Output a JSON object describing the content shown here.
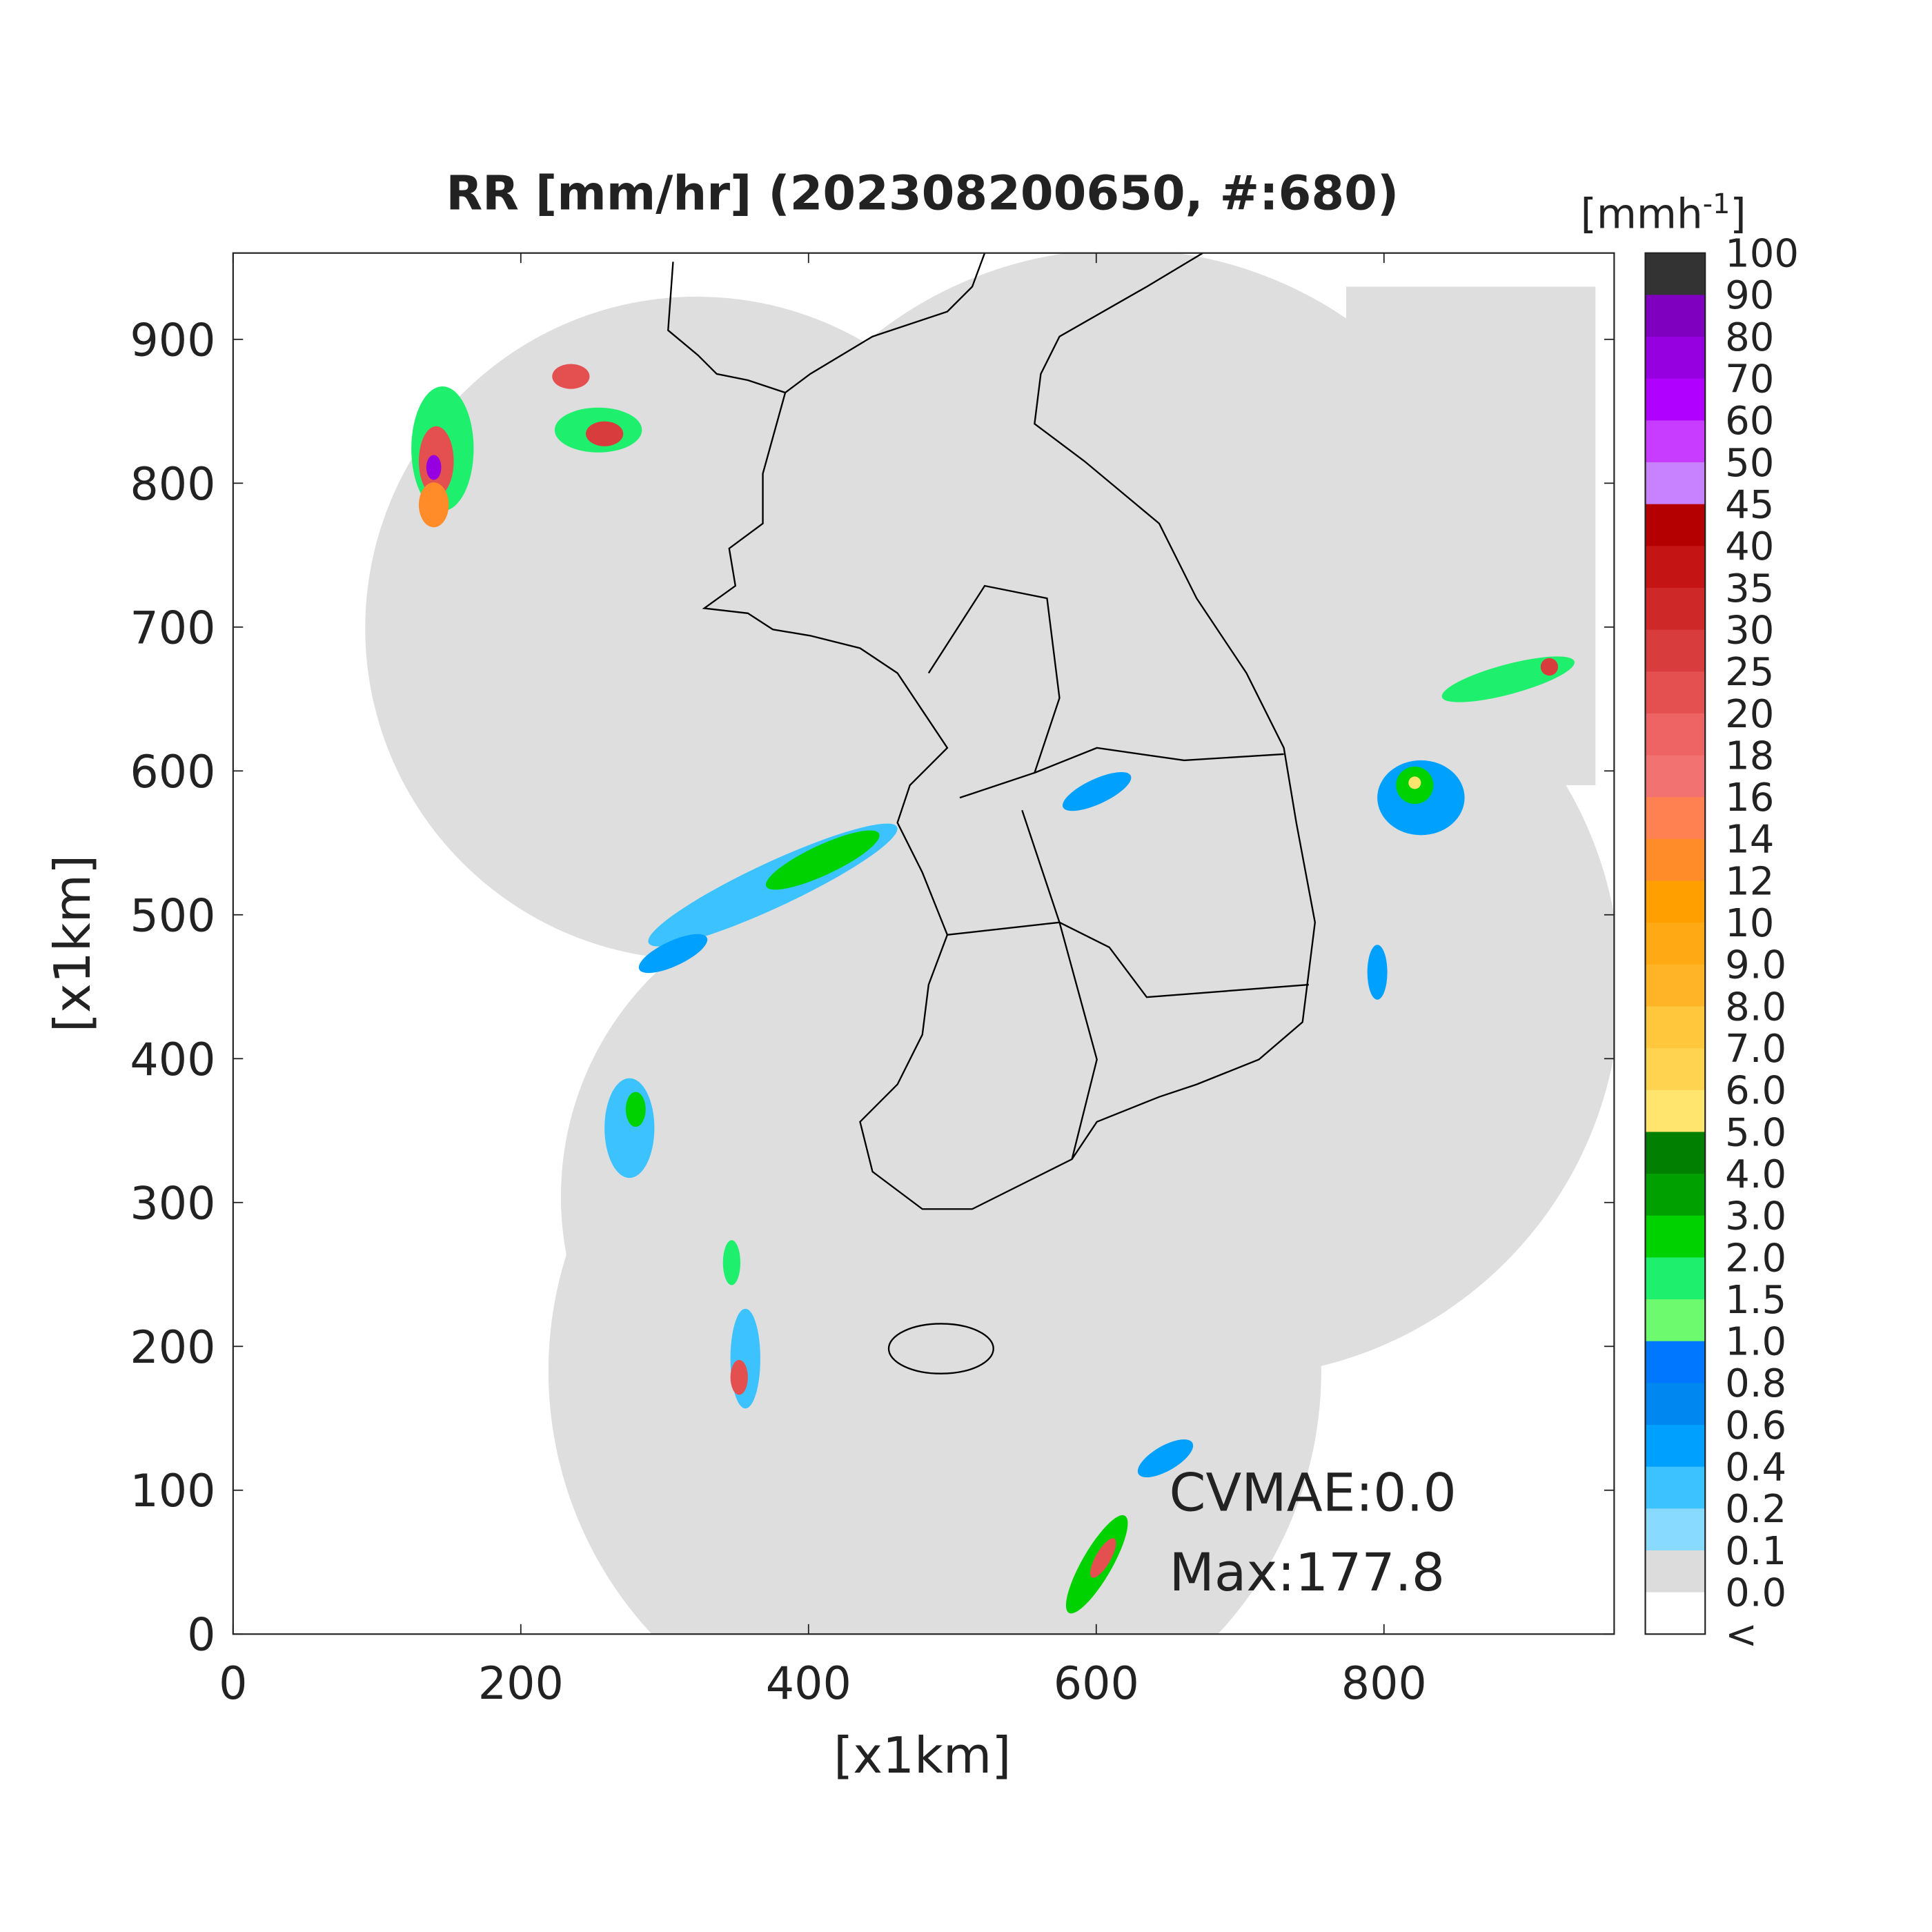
{
  "chart_data": {
    "type": "map",
    "title": "RR [mm/hr] (202308200650, #:680)",
    "x_label": "[x1km]",
    "y_label": "[x1km]",
    "xlim": [
      0,
      960
    ],
    "ylim": [
      0,
      960
    ],
    "xticks": [
      0,
      200,
      400,
      600,
      800
    ],
    "yticks": [
      0,
      100,
      200,
      300,
      400,
      500,
      600,
      700,
      800,
      900
    ],
    "annotations": [
      "CVMAE:0.0",
      "Max:177.8"
    ],
    "colorbar": {
      "unit": [
        "[mmh",
        "-1",
        "]"
      ],
      "labels": [
        "100",
        "90",
        "80",
        "70",
        "60",
        "50",
        "45",
        "40",
        "35",
        "30",
        "25",
        "20",
        "18",
        "16",
        "14",
        "12",
        "10",
        "9.0",
        "8.0",
        "7.0",
        "6.0",
        "5.0",
        "4.0",
        "3.0",
        "2.0",
        "1.5",
        "1.0",
        "0.8",
        "0.6",
        "0.4",
        "0.2",
        "0.1",
        "0.0",
        "<"
      ],
      "colors": [
        "#333333",
        "#7f00bf",
        "#9600e0",
        "#b000ff",
        "#c83cff",
        "#c882ff",
        "#b40000",
        "#c41414",
        "#cf2828",
        "#d93c3c",
        "#e45050",
        "#ee6464",
        "#f27272",
        "#ff8050",
        "#ff8c28",
        "#ffa000",
        "#ffaa14",
        "#ffb428",
        "#ffc83c",
        "#ffd250",
        "#ffe56e",
        "#007f00",
        "#00a000",
        "#00d200",
        "#1ef06e",
        "#6efa6e",
        "#0077ff",
        "#0088f0",
        "#00a0ff",
        "#3cc3ff",
        "#88daff",
        "#dcdcdc",
        "#ffffff"
      ]
    }
  }
}
